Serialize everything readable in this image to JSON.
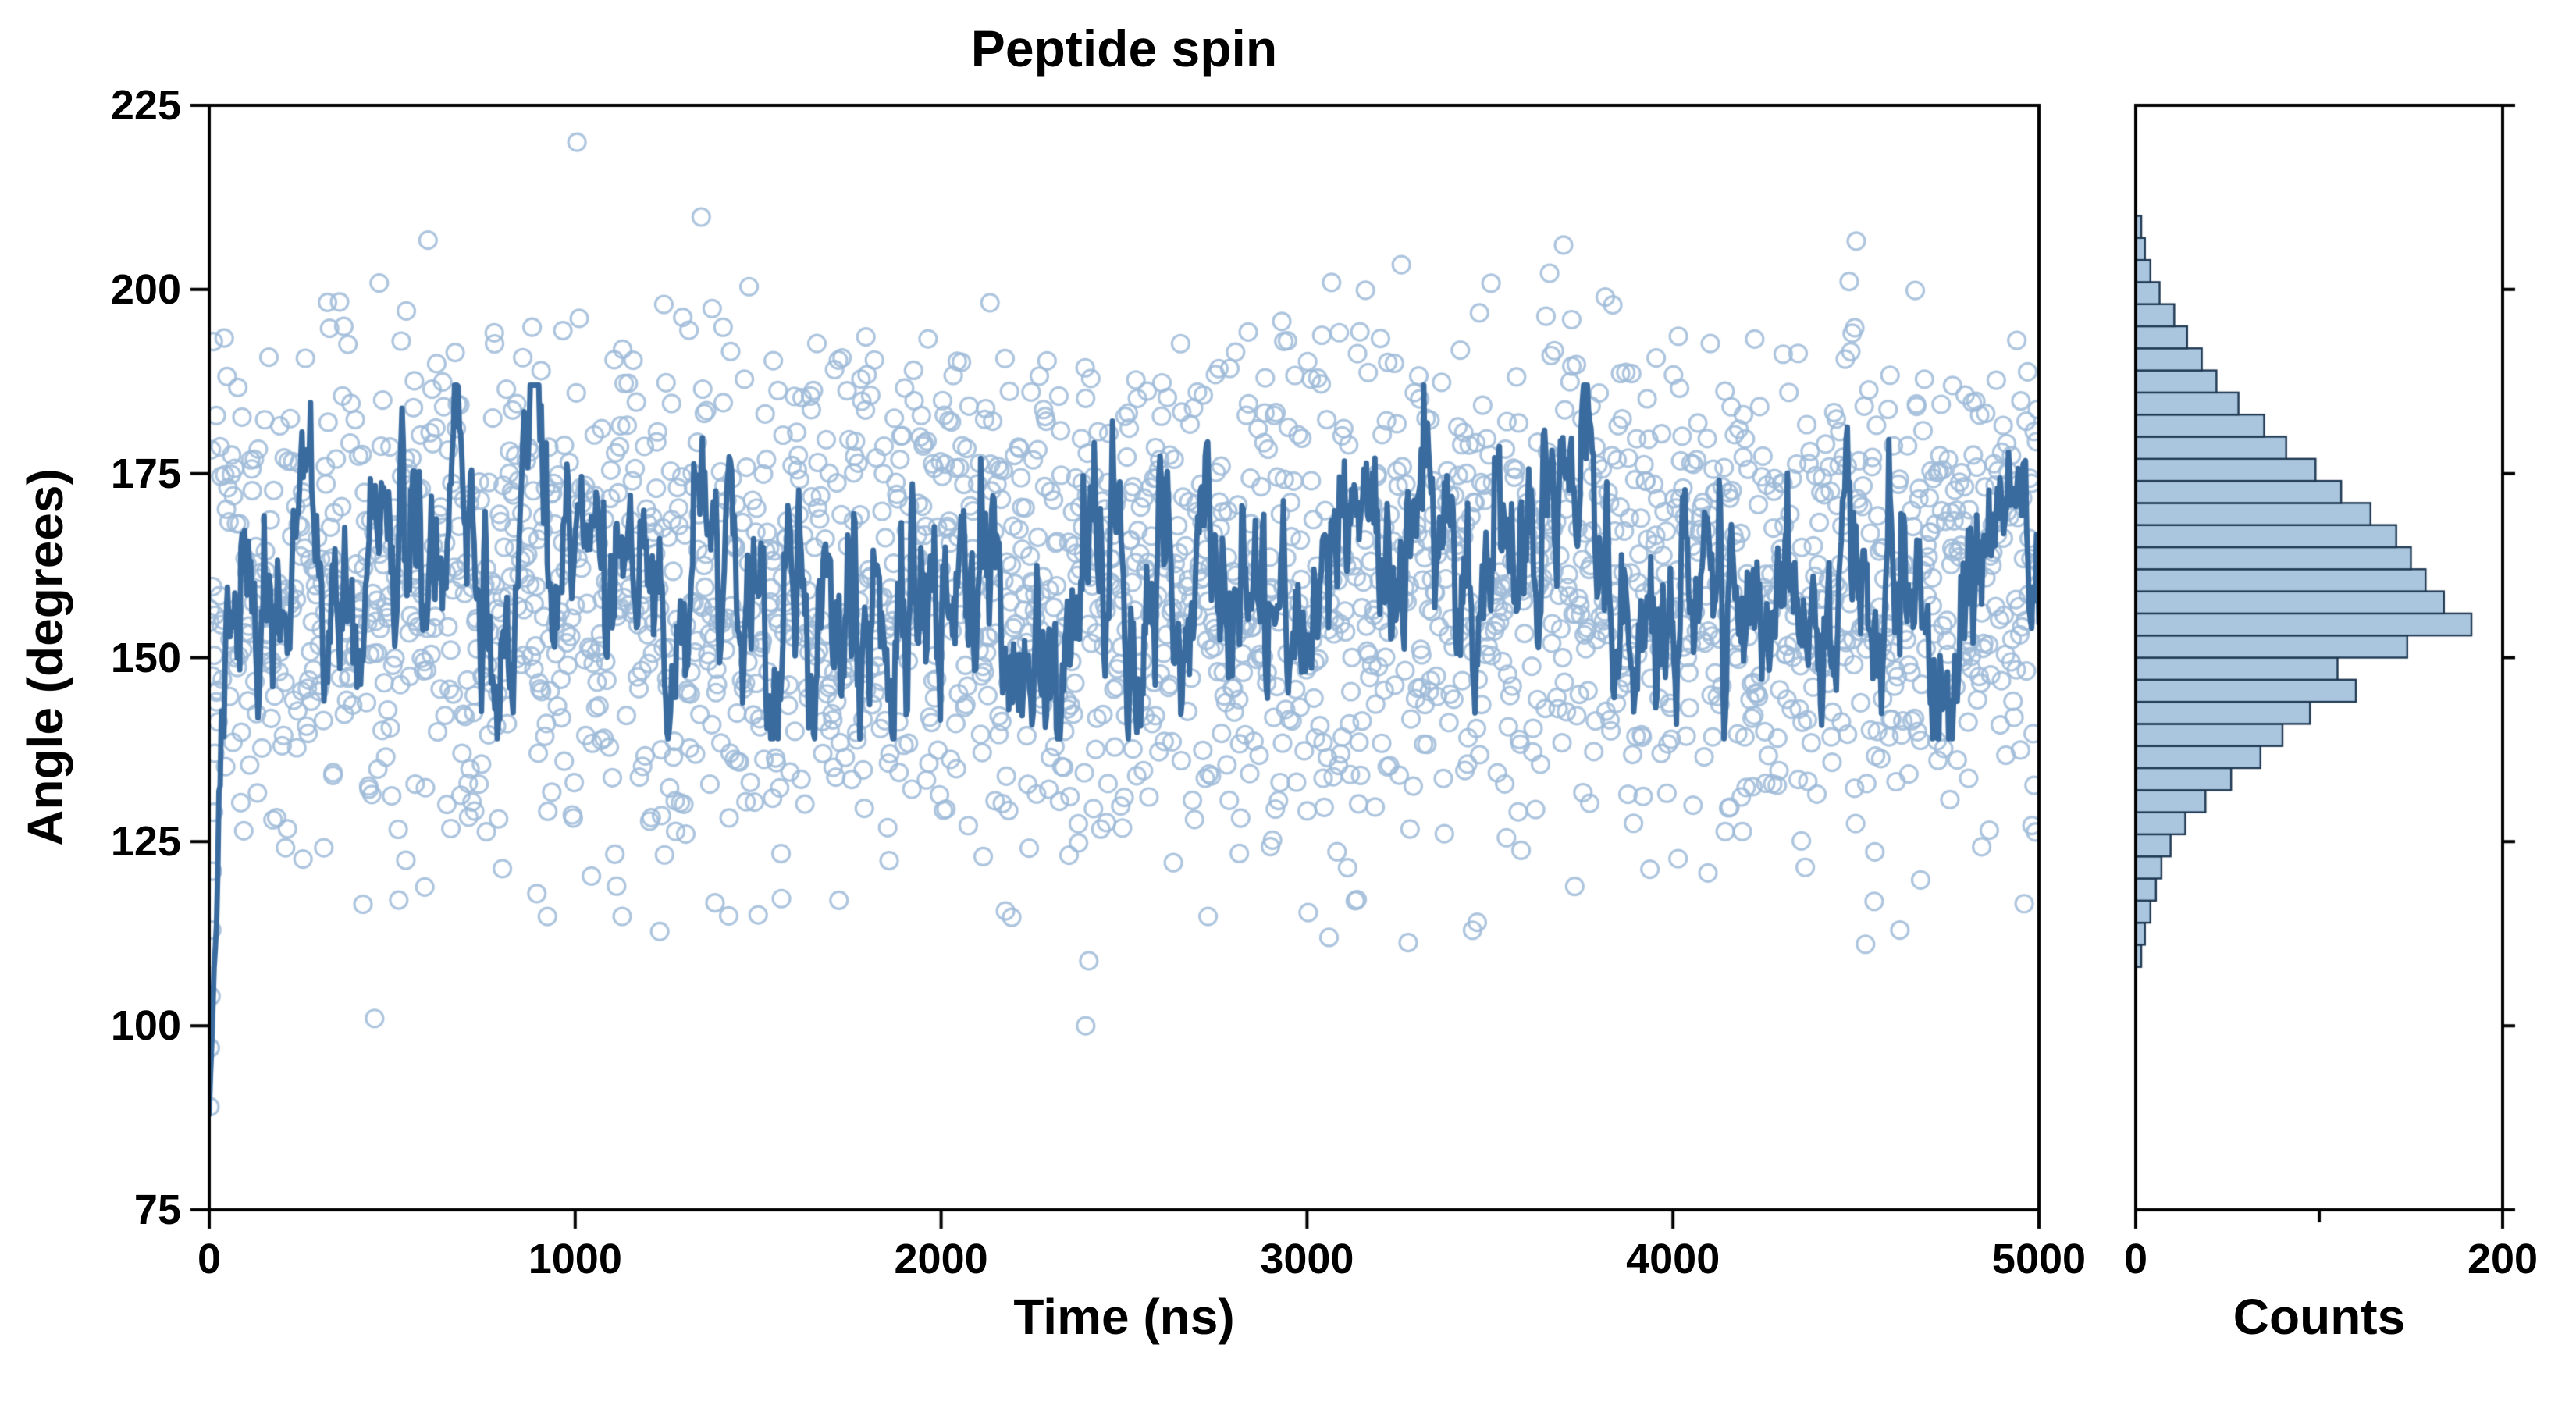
{
  "chart_data": {
    "type": "scatter",
    "title": "Peptide spin",
    "xlabel": "Time (ns)",
    "ylabel": "Angle (degrees)",
    "xlim": [
      0,
      5000
    ],
    "ylim": [
      75,
      225
    ],
    "x_ticks": [
      0,
      1000,
      2000,
      3000,
      4000,
      5000
    ],
    "y_ticks": [
      75,
      100,
      125,
      150,
      175,
      200,
      225
    ],
    "grid": false,
    "legend": "none",
    "rng_seed": 20,
    "colors": {
      "scatter": "#9fbbd8",
      "line": "#3a6b9f",
      "hist_fill": "#aac6df",
      "hist_edge": "#1f3852",
      "axis": "#000000"
    },
    "series": [
      {
        "name": "angle-scatter",
        "type": "scatter",
        "marker": "open-circle",
        "marker_radius": 11,
        "color": "#9fbbd8",
        "x_range": [
          0,
          5000
        ],
        "y_distribution": "sampled-from-histogram"
      },
      {
        "name": "running-average",
        "type": "line",
        "color": "#3a6b9f",
        "width": 7,
        "mean": 160,
        "phi": 0.86,
        "sigma": 5.2,
        "clip": [
          139,
          187
        ],
        "transient": {
          "x_end": 45,
          "y_start": 88
        },
        "points": 1500
      }
    ],
    "startup_points": [
      [
        2,
        89
      ],
      [
        3,
        97
      ],
      [
        5,
        104
      ],
      [
        7,
        113
      ],
      [
        9,
        121
      ],
      [
        12,
        129
      ],
      [
        15,
        137
      ],
      [
        20,
        144
      ]
    ],
    "extra_points": [
      [
        1005,
        220
      ],
      [
        452,
        101
      ],
      [
        2395,
        100
      ],
      [
        3060,
        112
      ],
      [
        4620,
        113
      ]
    ],
    "histogram": {
      "orientation": "horizontal",
      "xlabel": "Counts",
      "xlim": [
        0,
        200
      ],
      "x_ticks": [
        0,
        200
      ],
      "x_minor_ticks": [
        100
      ],
      "bin_start": 108,
      "bin_width": 3,
      "counts": [
        3,
        5,
        8,
        11,
        14,
        19,
        27,
        38,
        52,
        68,
        80,
        95,
        120,
        110,
        148,
        183,
        168,
        158,
        150,
        142,
        128,
        112,
        98,
        82,
        70,
        56,
        44,
        36,
        28,
        21,
        13,
        8,
        5,
        3
      ]
    }
  }
}
